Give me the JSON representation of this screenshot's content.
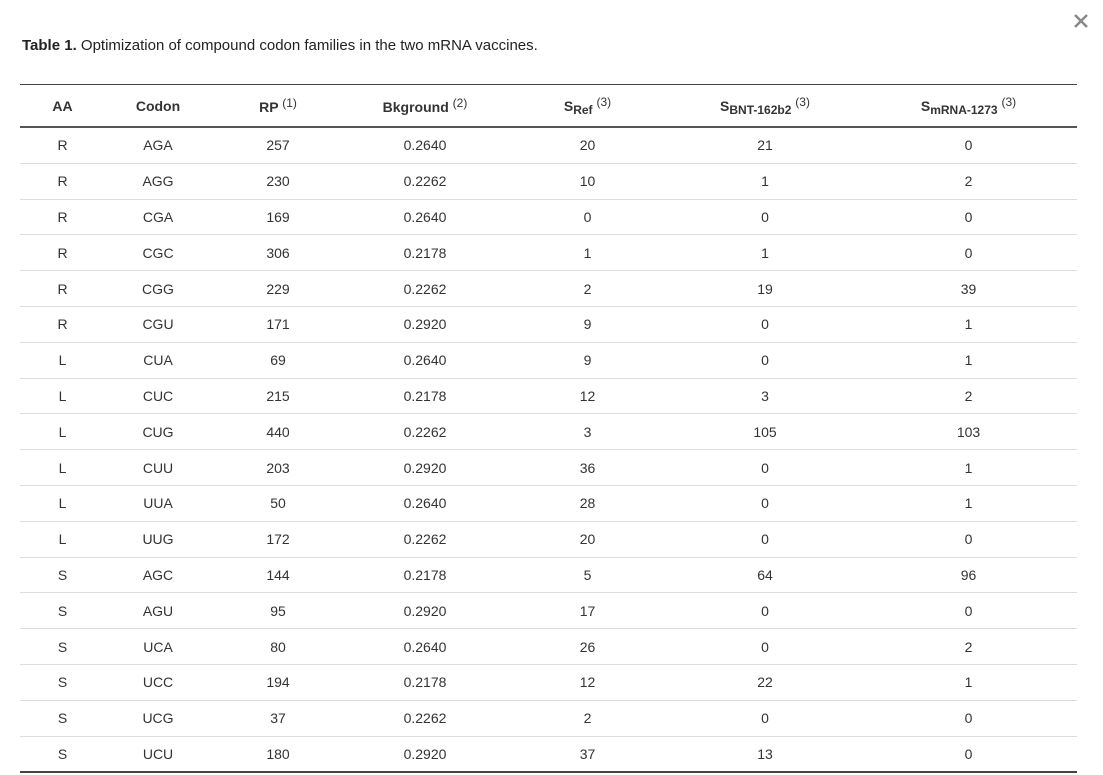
{
  "caption": {
    "label": "Table 1.",
    "text": "Optimization of compound codon families in the two mRNA vaccines."
  },
  "table": {
    "headers": [
      {
        "text": "AA"
      },
      {
        "text": "Codon"
      },
      {
        "text": "RP",
        "sup": "(1)"
      },
      {
        "text": "Bkground",
        "sup": "(2)"
      },
      {
        "text": "S",
        "sub": "Ref",
        "sup": "(3)"
      },
      {
        "text": "S",
        "sub": "BNT-162b2",
        "sup": "(3)"
      },
      {
        "text": "S",
        "sub": "mRNA-1273",
        "sup": "(3)"
      }
    ],
    "rows": [
      [
        "R",
        "AGA",
        "257",
        "0.2640",
        "20",
        "21",
        "0"
      ],
      [
        "R",
        "AGG",
        "230",
        "0.2262",
        "10",
        "1",
        "2"
      ],
      [
        "R",
        "CGA",
        "169",
        "0.2640",
        "0",
        "0",
        "0"
      ],
      [
        "R",
        "CGC",
        "306",
        "0.2178",
        "1",
        "1",
        "0"
      ],
      [
        "R",
        "CGG",
        "229",
        "0.2262",
        "2",
        "19",
        "39"
      ],
      [
        "R",
        "CGU",
        "171",
        "0.2920",
        "9",
        "0",
        "1"
      ],
      [
        "L",
        "CUA",
        "69",
        "0.2640",
        "9",
        "0",
        "1"
      ],
      [
        "L",
        "CUC",
        "215",
        "0.2178",
        "12",
        "3",
        "2"
      ],
      [
        "L",
        "CUG",
        "440",
        "0.2262",
        "3",
        "105",
        "103"
      ],
      [
        "L",
        "CUU",
        "203",
        "0.2920",
        "36",
        "0",
        "1"
      ],
      [
        "L",
        "UUA",
        "50",
        "0.2640",
        "28",
        "0",
        "1"
      ],
      [
        "L",
        "UUG",
        "172",
        "0.2262",
        "20",
        "0",
        "0"
      ],
      [
        "S",
        "AGC",
        "144",
        "0.2178",
        "5",
        "64",
        "96"
      ],
      [
        "S",
        "AGU",
        "95",
        "0.2920",
        "17",
        "0",
        "0"
      ],
      [
        "S",
        "UCA",
        "80",
        "0.2640",
        "26",
        "0",
        "2"
      ],
      [
        "S",
        "UCC",
        "194",
        "0.2178",
        "12",
        "22",
        "1"
      ],
      [
        "S",
        "UCG",
        "37",
        "0.2262",
        "2",
        "0",
        "0"
      ],
      [
        "S",
        "UCU",
        "180",
        "0.2920",
        "37",
        "13",
        "0"
      ]
    ]
  }
}
